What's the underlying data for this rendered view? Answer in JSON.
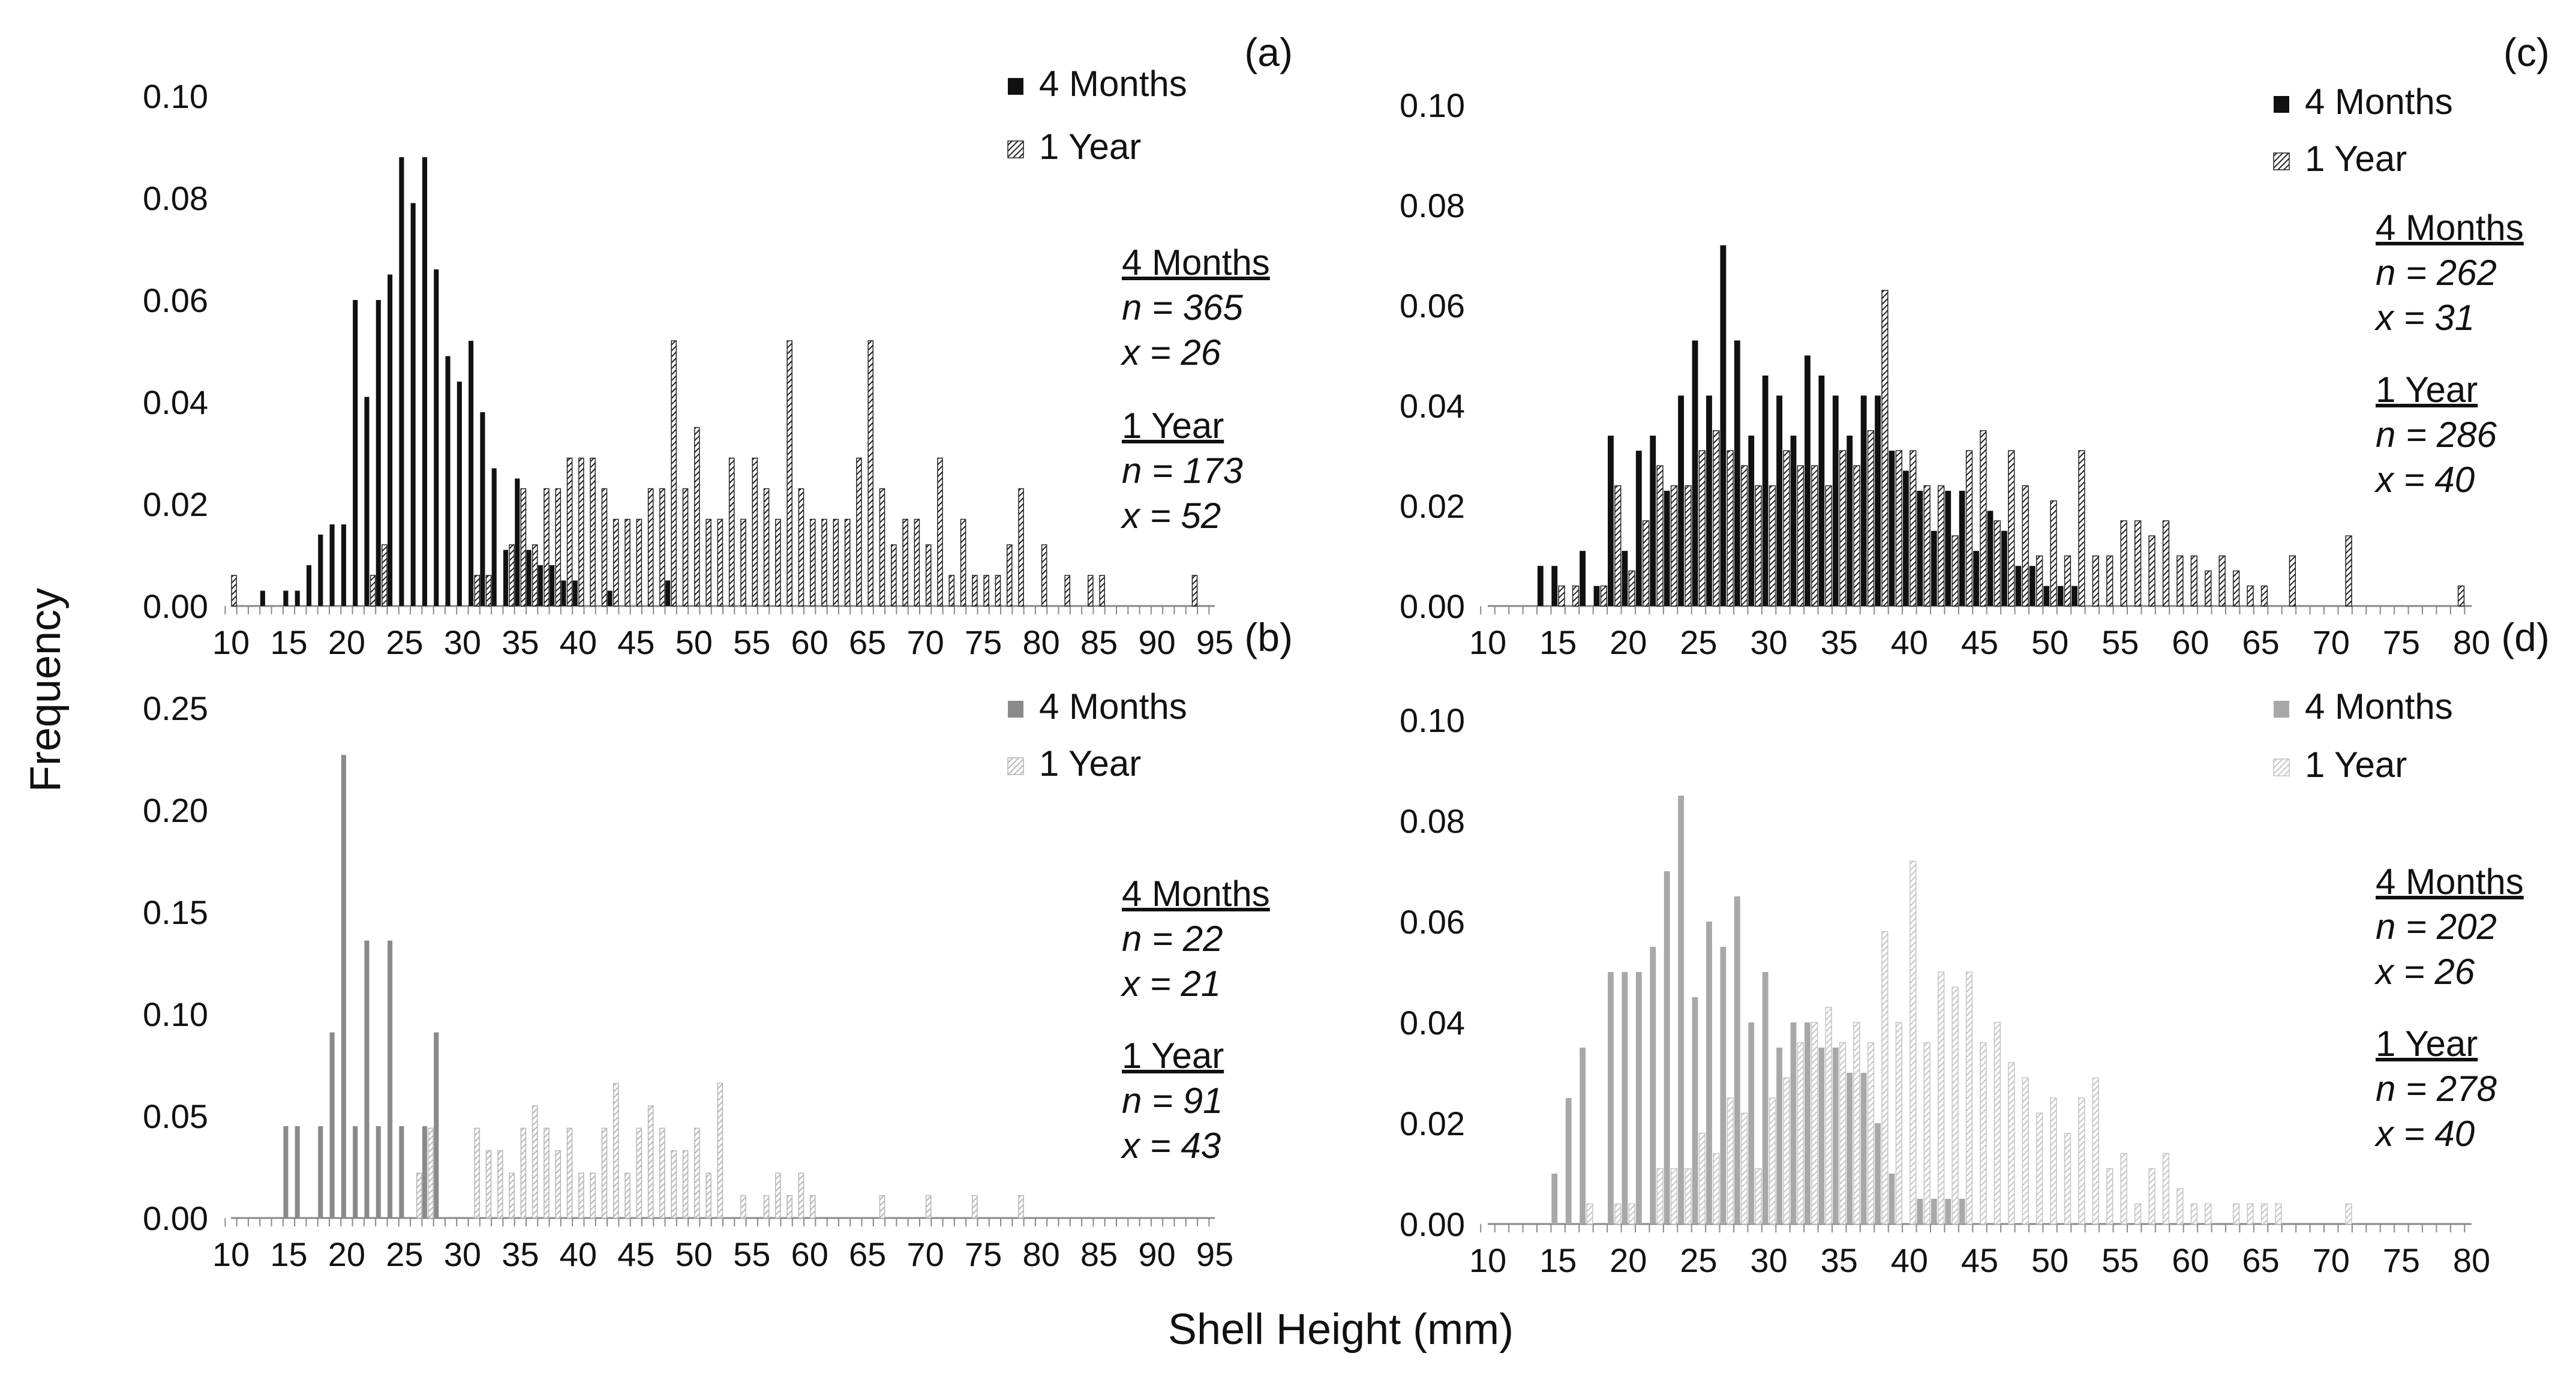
{
  "figure": {
    "xlabel": "Shell Height (mm)",
    "ylabel": "Frequency"
  },
  "chart_data": [
    {
      "type": "bar",
      "panel": "(a)",
      "xlim": [
        10,
        95
      ],
      "xticks": [
        "10",
        "15",
        "20",
        "25",
        "30",
        "35",
        "40",
        "45",
        "50",
        "55",
        "60",
        "65",
        "70",
        "75",
        "80",
        "85",
        "90",
        "95"
      ],
      "ylim": [
        0,
        0.1
      ],
      "yticks": [
        "0.00",
        "0.02",
        "0.04",
        "0.06",
        "0.08",
        "0.10"
      ],
      "colors": {
        "months": "#111111",
        "year_stroke": "#222222",
        "year_fill": "#ffffff"
      },
      "series": [
        {
          "name": "4 Months",
          "x": [
            13,
            15,
            16,
            17,
            18,
            19,
            20,
            21,
            22,
            23,
            24,
            25,
            26,
            27,
            28,
            29,
            30,
            31,
            32,
            33,
            34,
            35,
            36,
            37,
            38,
            39,
            40,
            43,
            48
          ],
          "values": [
            0.003,
            0.003,
            0.003,
            0.008,
            0.014,
            0.016,
            0.016,
            0.06,
            0.041,
            0.06,
            0.065,
            0.088,
            0.079,
            0.088,
            0.066,
            0.049,
            0.044,
            0.052,
            0.038,
            0.027,
            0.011,
            0.025,
            0.011,
            0.008,
            0.008,
            0.005,
            0.005,
            0.003,
            0.005
          ]
        },
        {
          "name": "1 Year",
          "x": [
            10,
            22,
            23,
            31,
            32,
            34,
            35,
            36,
            37,
            38,
            39,
            40,
            41,
            42,
            43,
            44,
            45,
            46,
            47,
            48,
            49,
            50,
            51,
            52,
            53,
            54,
            55,
            56,
            57,
            58,
            59,
            60,
            61,
            62,
            63,
            64,
            65,
            66,
            67,
            68,
            69,
            70,
            71,
            72,
            73,
            74,
            75,
            76,
            77,
            78,
            80,
            82,
            84,
            85,
            93
          ],
          "values": [
            0.006,
            0.006,
            0.012,
            0.006,
            0.006,
            0.012,
            0.023,
            0.012,
            0.023,
            0.023,
            0.029,
            0.029,
            0.029,
            0.023,
            0.017,
            0.017,
            0.017,
            0.023,
            0.023,
            0.052,
            0.023,
            0.035,
            0.017,
            0.017,
            0.029,
            0.017,
            0.029,
            0.023,
            0.017,
            0.052,
            0.023,
            0.017,
            0.017,
            0.017,
            0.017,
            0.029,
            0.052,
            0.023,
            0.012,
            0.017,
            0.017,
            0.012,
            0.029,
            0.006,
            0.017,
            0.006,
            0.006,
            0.006,
            0.012,
            0.023,
            0.012,
            0.006,
            0.006,
            0.006,
            0.006
          ]
        }
      ],
      "legend": [
        "4 Months",
        "1 Year"
      ],
      "stats": {
        "months": {
          "head": "4 Months",
          "n": "n = 365",
          "x": "x = 26"
        },
        "year": {
          "head": "1 Year",
          "n": "n = 173",
          "x": "x = 52"
        }
      }
    },
    {
      "type": "bar",
      "panel": "(b)",
      "xlim": [
        10,
        95
      ],
      "xticks": [
        "10",
        "15",
        "20",
        "25",
        "30",
        "35",
        "40",
        "45",
        "50",
        "55",
        "60",
        "65",
        "70",
        "75",
        "80",
        "85",
        "90",
        "95"
      ],
      "ylim": [
        0,
        0.25
      ],
      "yticks": [
        "0.00",
        "0.05",
        "0.10",
        "0.15",
        "0.20",
        "0.25"
      ],
      "colors": {
        "months": "#8a8a8a",
        "year_stroke": "#b5b5b5",
        "year_fill": "#ffffff"
      },
      "series": [
        {
          "name": "4 Months",
          "x": [
            15,
            16,
            18,
            19,
            20,
            21,
            22,
            23,
            24,
            25,
            27,
            28
          ],
          "values": [
            0.045,
            0.045,
            0.045,
            0.091,
            0.227,
            0.045,
            0.136,
            0.045,
            0.136,
            0.045,
            0.045,
            0.091
          ]
        },
        {
          "name": "1 Year",
          "x": [
            26,
            27,
            31,
            32,
            33,
            34,
            35,
            36,
            37,
            38,
            39,
            40,
            41,
            42,
            43,
            44,
            45,
            46,
            47,
            48,
            49,
            50,
            51,
            52,
            54,
            56,
            57,
            58,
            59,
            60,
            66,
            70,
            74,
            78
          ],
          "values": [
            0.022,
            0.044,
            0.044,
            0.033,
            0.033,
            0.022,
            0.044,
            0.055,
            0.044,
            0.033,
            0.044,
            0.022,
            0.022,
            0.044,
            0.066,
            0.022,
            0.044,
            0.055,
            0.044,
            0.033,
            0.033,
            0.044,
            0.022,
            0.066,
            0.011,
            0.011,
            0.022,
            0.011,
            0.022,
            0.011,
            0.011,
            0.011,
            0.011,
            0.011
          ]
        }
      ],
      "legend": [
        "4 Months",
        "1 Year"
      ],
      "stats": {
        "months": {
          "head": "4 Months",
          "n": "n = 22",
          "x": "x = 21"
        },
        "year": {
          "head": "1 Year",
          "n": "n = 91",
          "x": "x = 43"
        }
      }
    },
    {
      "type": "bar",
      "panel": "(c)",
      "xlim": [
        10,
        80
      ],
      "xticks": [
        "10",
        "15",
        "20",
        "25",
        "30",
        "35",
        "40",
        "45",
        "50",
        "55",
        "60",
        "65",
        "70",
        "75",
        "80"
      ],
      "ylim": [
        0,
        0.1
      ],
      "yticks": [
        "0.00",
        "0.02",
        "0.04",
        "0.06",
        "0.08",
        "0.10"
      ],
      "colors": {
        "months": "#111111",
        "year_stroke": "#222222",
        "year_fill": "#ffffff"
      },
      "series": [
        {
          "name": "4 Months",
          "x": [
            14,
            15,
            17,
            18,
            19,
            20,
            21,
            22,
            23,
            24,
            25,
            26,
            27,
            28,
            29,
            30,
            31,
            32,
            33,
            34,
            35,
            36,
            37,
            38,
            39,
            40,
            41,
            42,
            43,
            44,
            45,
            46,
            47,
            48,
            49,
            50,
            51,
            52
          ],
          "values": [
            0.008,
            0.008,
            0.011,
            0.004,
            0.034,
            0.011,
            0.031,
            0.034,
            0.023,
            0.042,
            0.053,
            0.042,
            0.072,
            0.053,
            0.034,
            0.046,
            0.042,
            0.034,
            0.05,
            0.046,
            0.042,
            0.034,
            0.042,
            0.042,
            0.031,
            0.027,
            0.023,
            0.015,
            0.023,
            0.023,
            0.011,
            0.019,
            0.015,
            0.008,
            0.008,
            0.004,
            0.004,
            0.004
          ]
        },
        {
          "name": "1 Year",
          "x": [
            15,
            16,
            18,
            19,
            20,
            21,
            22,
            23,
            24,
            25,
            26,
            27,
            28,
            29,
            30,
            31,
            32,
            33,
            34,
            35,
            36,
            37,
            38,
            39,
            40,
            41,
            42,
            43,
            44,
            45,
            46,
            47,
            48,
            49,
            50,
            51,
            52,
            53,
            54,
            55,
            56,
            57,
            58,
            59,
            60,
            61,
            62,
            63,
            64,
            65,
            67,
            71,
            79
          ],
          "values": [
            0.004,
            0.004,
            0.004,
            0.024,
            0.007,
            0.017,
            0.028,
            0.024,
            0.024,
            0.031,
            0.035,
            0.031,
            0.028,
            0.024,
            0.024,
            0.031,
            0.028,
            0.028,
            0.024,
            0.031,
            0.028,
            0.035,
            0.063,
            0.031,
            0.031,
            0.024,
            0.024,
            0.014,
            0.031,
            0.035,
            0.017,
            0.031,
            0.024,
            0.01,
            0.021,
            0.01,
            0.031,
            0.01,
            0.01,
            0.017,
            0.017,
            0.014,
            0.017,
            0.01,
            0.01,
            0.007,
            0.01,
            0.007,
            0.004,
            0.004,
            0.01,
            0.014,
            0.004
          ]
        }
      ],
      "legend": [
        "4 Months",
        "1 Year"
      ],
      "stats": {
        "months": {
          "head": "4 Months",
          "n": "n = 262",
          "x": "x = 31"
        },
        "year": {
          "head": "1 Year",
          "n": "n = 286",
          "x": "x = 40"
        }
      }
    },
    {
      "type": "bar",
      "panel": "(d)",
      "xlim": [
        10,
        80
      ],
      "xticks": [
        "10",
        "15",
        "20",
        "25",
        "30",
        "35",
        "40",
        "45",
        "50",
        "55",
        "60",
        "65",
        "70",
        "75",
        "80"
      ],
      "ylim": [
        0,
        0.1
      ],
      "yticks": [
        "0.00",
        "0.02",
        "0.04",
        "0.06",
        "0.08",
        "0.10"
      ],
      "colors": {
        "months": "#a8a8a8",
        "year_stroke": "#c4c4c4",
        "year_fill": "#ffffff"
      },
      "series": [
        {
          "name": "4 Months",
          "x": [
            15,
            16,
            17,
            19,
            20,
            21,
            22,
            23,
            24,
            25,
            26,
            27,
            28,
            29,
            30,
            31,
            32,
            33,
            34,
            35,
            36,
            37,
            38,
            39,
            41,
            42,
            43,
            44
          ],
          "values": [
            0.01,
            0.025,
            0.035,
            0.05,
            0.05,
            0.05,
            0.055,
            0.07,
            0.085,
            0.045,
            0.06,
            0.055,
            0.065,
            0.04,
            0.05,
            0.035,
            0.04,
            0.04,
            0.035,
            0.035,
            0.03,
            0.03,
            0.02,
            0.01,
            0.005,
            0.005,
            0.005,
            0.005
          ]
        },
        {
          "name": "1 Year",
          "x": [
            17,
            19,
            20,
            22,
            23,
            24,
            25,
            26,
            27,
            28,
            29,
            30,
            31,
            32,
            33,
            34,
            35,
            36,
            37,
            38,
            39,
            40,
            41,
            42,
            43,
            44,
            45,
            46,
            47,
            48,
            49,
            50,
            51,
            52,
            53,
            54,
            55,
            56,
            57,
            58,
            59,
            60,
            61,
            63,
            64,
            65,
            66,
            71
          ],
          "values": [
            0.004,
            0.004,
            0.004,
            0.011,
            0.011,
            0.011,
            0.018,
            0.014,
            0.025,
            0.022,
            0.011,
            0.025,
            0.029,
            0.036,
            0.04,
            0.043,
            0.036,
            0.04,
            0.036,
            0.058,
            0.04,
            0.072,
            0.036,
            0.05,
            0.047,
            0.05,
            0.036,
            0.04,
            0.032,
            0.029,
            0.022,
            0.025,
            0.018,
            0.025,
            0.029,
            0.011,
            0.014,
            0.004,
            0.011,
            0.014,
            0.007,
            0.004,
            0.004,
            0.004,
            0.004,
            0.004,
            0.004,
            0.004
          ]
        }
      ],
      "legend": [
        "4 Months",
        "1 Year"
      ],
      "stats": {
        "months": {
          "head": "4 Months",
          "n": "n = 202",
          "x": "x = 26"
        },
        "year": {
          "head": "1 Year",
          "n": "n = 278",
          "x": "x = 40"
        }
      }
    }
  ]
}
